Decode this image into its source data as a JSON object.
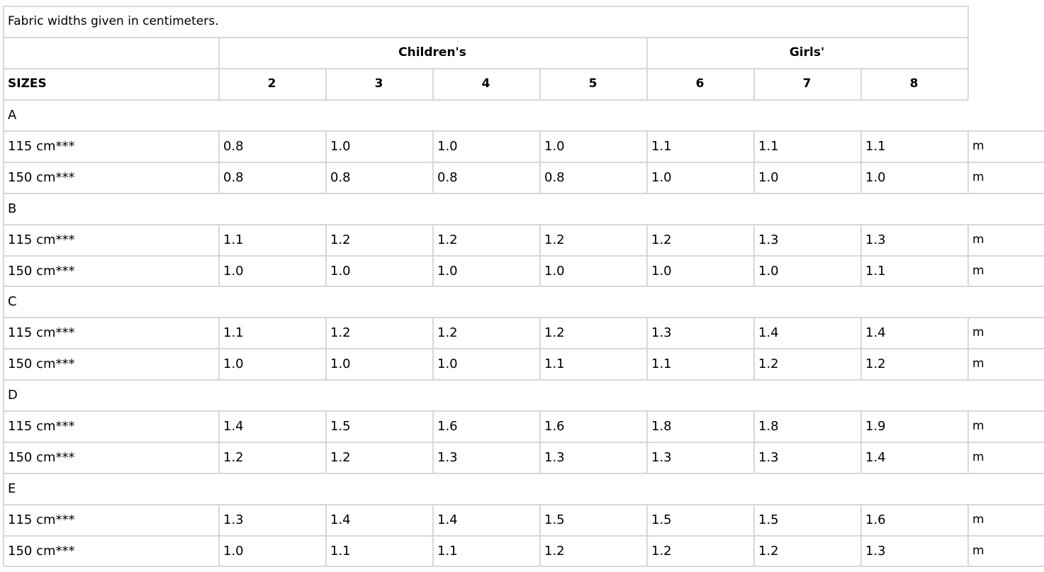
{
  "note": "Fabric widths given in centimeters.",
  "groups": [
    {
      "label": "Children's"
    },
    {
      "label": "Girls'"
    }
  ],
  "size_header": "SIZES",
  "sizes": [
    "2",
    "3",
    "4",
    "5",
    "6",
    "7",
    "8"
  ],
  "unit": "m",
  "sections": [
    {
      "label": "A",
      "rows": [
        {
          "label": "115 cm***",
          "values": [
            "0.8",
            "1.0",
            "1.0",
            "1.0",
            "1.1",
            "1.1",
            "1.1"
          ]
        },
        {
          "label": "150 cm***",
          "values": [
            "0.8",
            "0.8",
            "0.8",
            "0.8",
            "1.0",
            "1.0",
            "1.0"
          ]
        }
      ]
    },
    {
      "label": "B",
      "rows": [
        {
          "label": "115 cm***",
          "values": [
            "1.1",
            "1.2",
            "1.2",
            "1.2",
            "1.2",
            "1.3",
            "1.3"
          ]
        },
        {
          "label": "150 cm***",
          "values": [
            "1.0",
            "1.0",
            "1.0",
            "1.0",
            "1.0",
            "1.0",
            "1.1"
          ]
        }
      ]
    },
    {
      "label": "C",
      "rows": [
        {
          "label": "115 cm***",
          "values": [
            "1.1",
            "1.2",
            "1.2",
            "1.2",
            "1.3",
            "1.4",
            "1.4"
          ]
        },
        {
          "label": "150 cm***",
          "values": [
            "1.0",
            "1.0",
            "1.0",
            "1.1",
            "1.1",
            "1.2",
            "1.2"
          ]
        }
      ]
    },
    {
      "label": "D",
      "rows": [
        {
          "label": "115 cm***",
          "values": [
            "1.4",
            "1.5",
            "1.6",
            "1.6",
            "1.8",
            "1.8",
            "1.9"
          ]
        },
        {
          "label": "150 cm***",
          "values": [
            "1.2",
            "1.2",
            "1.3",
            "1.3",
            "1.3",
            "1.3",
            "1.4"
          ]
        }
      ]
    },
    {
      "label": "E",
      "rows": [
        {
          "label": "115 cm***",
          "values": [
            "1.3",
            "1.4",
            "1.4",
            "1.5",
            "1.5",
            "1.5",
            "1.6"
          ]
        },
        {
          "label": "150 cm***",
          "values": [
            "1.0",
            "1.1",
            "1.1",
            "1.2",
            "1.2",
            "1.2",
            "1.3"
          ]
        }
      ]
    }
  ]
}
